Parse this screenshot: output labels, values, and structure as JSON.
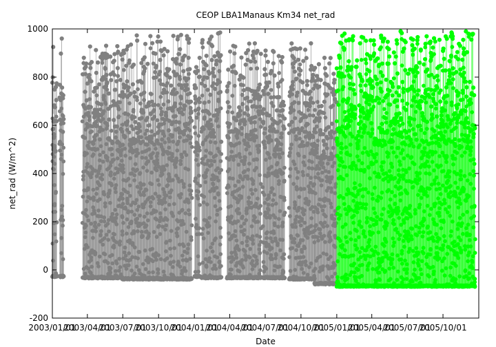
{
  "chart_data": {
    "type": "scatter",
    "title": "CEOP LBA1Manaus Km34  net_rad",
    "xlabel": "Date",
    "ylabel": "net_rad (W/m^2)",
    "ylim": [
      -200,
      1000
    ],
    "xlim": [
      "2003-01-01",
      "2006-01-01"
    ],
    "yticks": [
      -200,
      0,
      200,
      400,
      600,
      800,
      1000
    ],
    "xtick_labels": [
      "2003/01/01",
      "2003/04/01",
      "2003/07/01",
      "2003/10/01",
      "2004/01/01",
      "2004/04/01",
      "2004/07/01",
      "2004/10/01",
      "2005/01/01",
      "2005/04/01",
      "2005/07/01",
      "2005/10/01"
    ],
    "xtick_dates": [
      "2003-01-01",
      "2003-04-01",
      "2003-07-01",
      "2003-10-01",
      "2004-01-01",
      "2004-04-01",
      "2004-07-01",
      "2004-10-01",
      "2005-01-01",
      "2005-04-01",
      "2005-07-01",
      "2005-10-01"
    ],
    "grid": false,
    "series": [
      {
        "color": "#808080",
        "segments": [
          {
            "start": "2003-01-01",
            "end": "2003-01-12",
            "min": -30,
            "max": 925
          },
          {
            "start": "2003-01-20",
            "end": "2003-01-30",
            "min": -30,
            "max": 960
          },
          {
            "start": "2003-03-20",
            "end": "2003-06-30",
            "min": -35,
            "max": 930
          },
          {
            "start": "2003-06-30",
            "end": "2003-12-25",
            "min": -40,
            "max": 975
          },
          {
            "start": "2004-01-02",
            "end": "2004-01-15",
            "min": -30,
            "max": 880
          },
          {
            "start": "2004-01-20",
            "end": "2004-03-10",
            "min": -35,
            "max": 985
          },
          {
            "start": "2004-03-25",
            "end": "2004-06-20",
            "min": -35,
            "max": 940
          },
          {
            "start": "2004-06-25",
            "end": "2004-08-20",
            "min": -35,
            "max": 910
          },
          {
            "start": "2004-09-01",
            "end": "2004-11-05",
            "min": -40,
            "max": 940
          },
          {
            "start": "2004-11-05",
            "end": "2004-12-31",
            "min": -60,
            "max": 880
          }
        ]
      },
      {
        "color": "#00ff00",
        "segments": [
          {
            "start": "2005-01-01",
            "end": "2005-12-22",
            "min": -70,
            "max": 990
          }
        ]
      }
    ]
  }
}
